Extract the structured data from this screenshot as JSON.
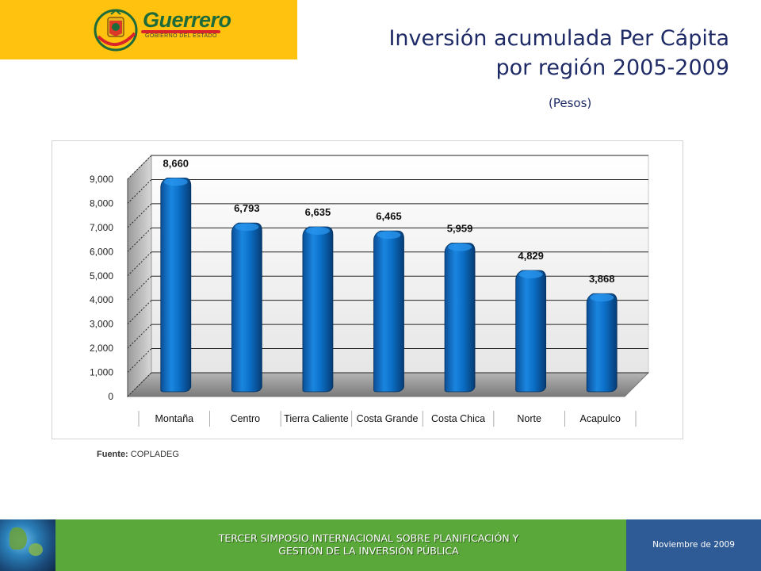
{
  "logo": {
    "name": "Guerrero",
    "tagline": "GOBIERNO DEL ESTADO"
  },
  "title": {
    "line1": "Inversión acumulada Per Cápita",
    "line2": "por región 2005-2009",
    "units": "(Pesos)"
  },
  "source": {
    "label": "Fuente:",
    "value": "COPLADEG"
  },
  "footer": {
    "line1": "TERCER SIMPOSIO INTERNACIONAL SOBRE PLANIFICACIÓN Y",
    "line2": "GESTIÓN DE LA INVERSIÓN PÚBLICA",
    "date": "Noviembre de 2009"
  },
  "colors": {
    "bar": "#0b6fc7",
    "bar_dark": "#07427c",
    "floor": "#8c8c8c",
    "banner": "#ffc20e",
    "footer_green": "#5aa83a",
    "footer_blue": "#2e5a96",
    "title": "#1f2b66"
  },
  "chart_data": {
    "type": "bar",
    "title": "Inversión acumulada Per Cápita por región 2005-2009",
    "subtitle": "(Pesos)",
    "xlabel": "",
    "ylabel": "",
    "categories": [
      "Montaña",
      "Centro",
      "Tierra Caliente",
      "Costa Grande",
      "Costa Chica",
      "Norte",
      "Acapulco"
    ],
    "values": [
      8660,
      6793,
      6635,
      6465,
      5959,
      4829,
      3868
    ],
    "value_labels": [
      "8,660",
      "6,793",
      "6,635",
      "6,465",
      "5,959",
      "4,829",
      "3,868"
    ],
    "ylim": [
      0,
      9000
    ],
    "yticks": [
      0,
      1000,
      2000,
      3000,
      4000,
      5000,
      6000,
      7000,
      8000,
      9000
    ],
    "ytick_labels": [
      "0",
      "1,000",
      "2,000",
      "3,000",
      "4,000",
      "5,000",
      "6,000",
      "7,000",
      "8,000",
      "9,000"
    ],
    "grid": true,
    "legend": "none",
    "style": "3d-cylinder"
  }
}
